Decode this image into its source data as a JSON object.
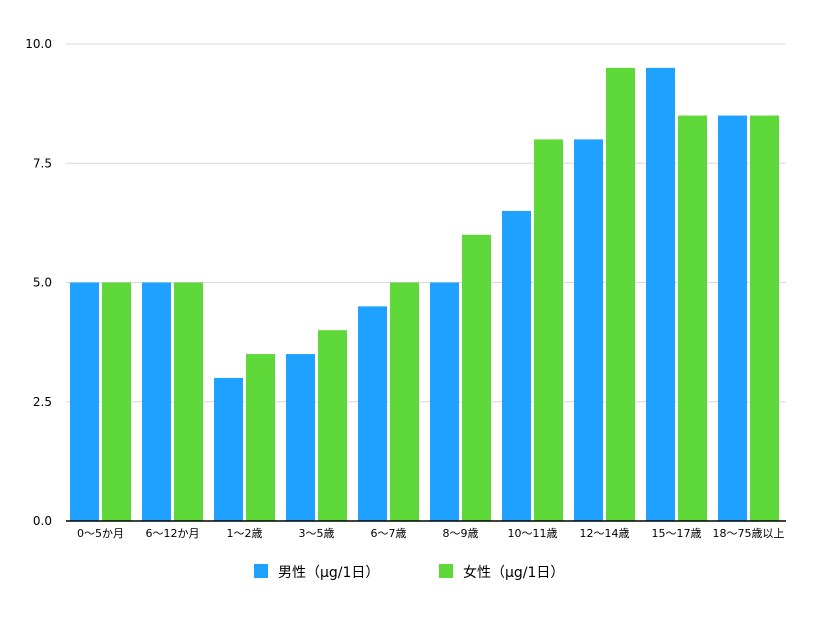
{
  "chart_data": {
    "type": "bar",
    "categories": [
      "0〜5か月",
      "6〜12か月",
      "1〜2歳",
      "3〜5歳",
      "6〜7歳",
      "8〜9歳",
      "10〜11歳",
      "12〜14歳",
      "15〜17歳",
      "18〜75歳以上"
    ],
    "series": [
      {
        "name": "男性（μg/1日）",
        "color": "#1ea1ff",
        "values": [
          5.0,
          5.0,
          3.0,
          3.5,
          4.5,
          5.0,
          6.5,
          8.0,
          9.5,
          8.5
        ]
      },
      {
        "name": "女性（μg/1日）",
        "color": "#5fd93a",
        "values": [
          5.0,
          5.0,
          3.5,
          4.0,
          5.0,
          6.0,
          8.0,
          9.5,
          8.5,
          8.5
        ]
      }
    ],
    "yticks": [
      "0.0",
      "2.5",
      "5.0",
      "7.5",
      "10.0"
    ],
    "ylim": [
      0,
      10
    ],
    "grid": true,
    "legend": "bottom-center",
    "title": "",
    "xlabel": "",
    "ylabel": ""
  }
}
